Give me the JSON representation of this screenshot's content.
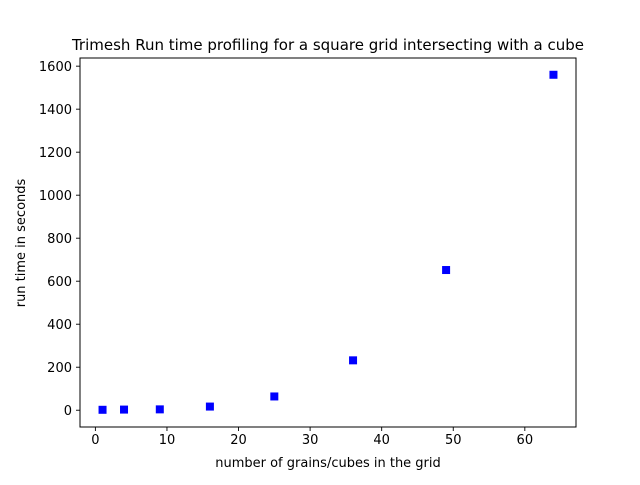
{
  "chart_data": {
    "type": "scatter",
    "title": "Trimesh Run time profiling for a square grid intersecting with a cube",
    "xlabel": "number of grains/cubes in the grid",
    "ylabel": "run time in seconds",
    "xlim": [
      -2.15,
      67.15
    ],
    "ylim": [
      -78,
      1638
    ],
    "xticks": [
      0,
      10,
      20,
      30,
      40,
      50,
      60
    ],
    "yticks": [
      0,
      200,
      400,
      600,
      800,
      1000,
      1200,
      1400,
      1600
    ],
    "marker": "square",
    "grid": false,
    "series": [
      {
        "color": "#0000ff",
        "x": [
          1,
          4,
          9,
          16,
          25,
          36,
          49,
          64
        ],
        "y": [
          2,
          3,
          4,
          17,
          64,
          232,
          652,
          1560
        ]
      }
    ]
  }
}
